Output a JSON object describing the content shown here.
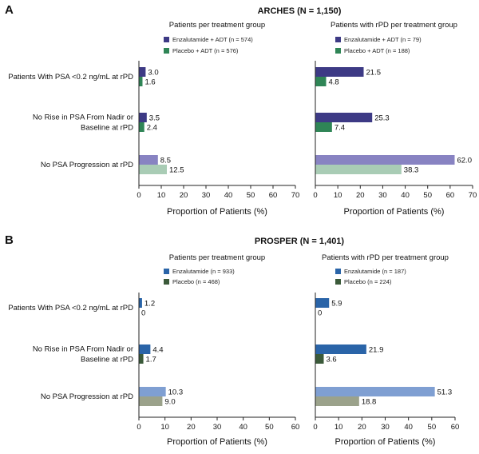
{
  "panels": [
    {
      "letter": "A",
      "title": "ARCHES (N = 1,150)",
      "categories": [
        [
          "Patients With PSA <0.2 ng/mL at rPD"
        ],
        [
          "No Rise in PSA From Nadir or",
          "Baseline at rPD"
        ],
        [
          "No PSA Progression at rPD"
        ]
      ]
    },
    {
      "letter": "B",
      "title": "PROSPER (N = 1,401)",
      "categories": [
        [
          "Patients With PSA <0.2 ng/mL at rPD"
        ],
        [
          "No Rise in PSA From Nadir or",
          "Baseline at rPD"
        ],
        [
          "No PSA Progression at rPD"
        ]
      ]
    }
  ],
  "chart_data": [
    {
      "type": "bar",
      "title": "Patients per treatment group",
      "xlabel": "Proportion of Patients (%)",
      "xlim": [
        0,
        70
      ],
      "xticks": [
        0,
        10,
        20,
        30,
        40,
        50,
        60,
        70
      ],
      "categories": [
        "Patients With PSA <0.2 ng/mL at rPD",
        "No Rise in PSA From Nadir or Baseline at rPD",
        "No PSA Progression at rPD"
      ],
      "series": [
        {
          "name": "Enzalutamide + ADT (n = 574)",
          "values": [
            3.0,
            3.5,
            8.5
          ],
          "labels": [
            "3.0",
            "3.5",
            "8.5"
          ]
        },
        {
          "name": "Placebo + ADT (n = 576)",
          "values": [
            1.6,
            2.4,
            12.5
          ],
          "labels": [
            "1.6",
            "2.4",
            "12.5"
          ]
        }
      ],
      "colors": {
        "series": [
          "#3d3a85",
          "#2f8556"
        ],
        "last_category": [
          "#8883c2",
          "#a9ccb5"
        ]
      }
    },
    {
      "type": "bar",
      "title": "Patients with rPD per treatment group",
      "xlabel": "Proportion of Patients (%)",
      "xlim": [
        0,
        70
      ],
      "xticks": [
        0,
        10,
        20,
        30,
        40,
        50,
        60,
        70
      ],
      "categories": [
        "Patients With PSA <0.2 ng/mL at rPD",
        "No Rise in PSA From Nadir or Baseline at rPD",
        "No PSA Progression at rPD"
      ],
      "series": [
        {
          "name": "Enzalutamide + ADT (n = 79)",
          "values": [
            21.5,
            25.3,
            62.0
          ],
          "labels": [
            "21.5",
            "25.3",
            "62.0"
          ]
        },
        {
          "name": "Placebo + ADT (n = 188)",
          "values": [
            4.8,
            7.4,
            38.3
          ],
          "labels": [
            "4.8",
            "7.4",
            "38.3"
          ]
        }
      ],
      "colors": {
        "series": [
          "#3d3a85",
          "#2f8556"
        ],
        "last_category": [
          "#8883c2",
          "#a9ccb5"
        ]
      }
    },
    {
      "type": "bar",
      "title": "Patients per treatment group",
      "xlabel": "Proportion of Patients (%)",
      "xlim": [
        0,
        60
      ],
      "xticks": [
        0,
        10,
        20,
        30,
        40,
        50,
        60
      ],
      "categories": [
        "Patients With PSA <0.2 ng/mL at rPD",
        "No Rise in PSA From Nadir or Baseline at rPD",
        "No PSA Progression at rPD"
      ],
      "series": [
        {
          "name": "Enzalutamide (n = 933)",
          "values": [
            1.2,
            4.4,
            10.3
          ],
          "labels": [
            "1.2",
            "4.4",
            "10.3"
          ]
        },
        {
          "name": "Placebo (n = 468)",
          "values": [
            0,
            1.7,
            9.0
          ],
          "labels": [
            "0",
            "1.7",
            "9.0"
          ]
        }
      ],
      "colors": {
        "series": [
          "#2a64a8",
          "#3b5a3a"
        ],
        "last_category": [
          "#7f9fd2",
          "#9ba28b"
        ]
      }
    },
    {
      "type": "bar",
      "title": "Patients with rPD per treatment group",
      "xlabel": "Proportion of Patients (%)",
      "xlim": [
        0,
        60
      ],
      "xticks": [
        0,
        10,
        20,
        30,
        40,
        50,
        60
      ],
      "categories": [
        "Patients With PSA <0.2 ng/mL at rPD",
        "No Rise in PSA From Nadir or Baseline at rPD",
        "No PSA Progression at rPD"
      ],
      "series": [
        {
          "name": "Enzalutamide (n = 187)",
          "values": [
            5.9,
            21.9,
            51.3
          ],
          "labels": [
            "5.9",
            "21.9",
            "51.3"
          ]
        },
        {
          "name": "Placebo (n = 224)",
          "values": [
            0,
            3.6,
            18.8
          ],
          "labels": [
            "0",
            "3.6",
            "18.8"
          ]
        }
      ],
      "colors": {
        "series": [
          "#2a64a8",
          "#3b5a3a"
        ],
        "last_category": [
          "#7f9fd2",
          "#9ba28b"
        ]
      }
    }
  ]
}
